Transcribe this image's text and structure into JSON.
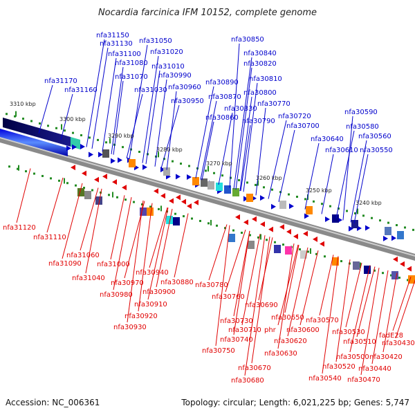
{
  "title": "Nocardia farcinica IFM 10152, complete genome",
  "accession": "Accession: NC_006361",
  "summary": "Topology: circular; Length: 6,021,225 bp; Genes: 5,747",
  "colors": {
    "forward": "#0000cc",
    "reverse": "#e00000",
    "axis": "#888888",
    "tick": "#228b22"
  },
  "ticks": [
    "3310 kbp",
    "3300 kbp",
    "3290 kbp",
    "3280 kbp",
    "3270 kbp",
    "3260 kbp",
    "3250 kbp",
    "3240 kbp"
  ],
  "top_labels": [
    "nfa31150",
    "nfa31130",
    "nfa31100",
    "nfa31080",
    "nfa31070",
    "nfa31050",
    "nfa31020",
    "nfa31010",
    "nfa30990",
    "nfa30960",
    "nfa30950",
    "nfa31030",
    "nfa31170",
    "nfa31160",
    "nfa30850",
    "nfa30840",
    "nfa30820",
    "nfa30810",
    "nfa30800",
    "nfa30770",
    "nfa30890",
    "nfa30870",
    "nfa30830",
    "nfa30860",
    "nfa30790",
    "nfa30720",
    "nfa30700",
    "nfa30640",
    "nfa30610",
    "nfa30590",
    "nfa30580",
    "nfa30560",
    "nfa30550"
  ],
  "bottom_labels": [
    "nfa31120",
    "nfa31110",
    "nfa31060",
    "nfa31090",
    "nfa31000",
    "nfa31040",
    "nfa30940",
    "nfa30970",
    "nfa30880",
    "nfa30900",
    "nfa30980",
    "nfa30910",
    "nfa30920",
    "nfa30930",
    "nfa30780",
    "nfa30760",
    "nfa30690",
    "nfa30730",
    "nfa30710",
    "phr",
    "nfa30650",
    "nfa30740",
    "nfa30600",
    "nfa30620",
    "nfa30750",
    "nfa30630",
    "nfa30670",
    "nfa30680",
    "nfa30570",
    "nfa30530",
    "nfa30510",
    "nfa30500",
    "nfa30520",
    "nfa30540",
    "fadE28",
    "nfa30430",
    "nfa30420",
    "nfa30440",
    "nfa30470"
  ]
}
